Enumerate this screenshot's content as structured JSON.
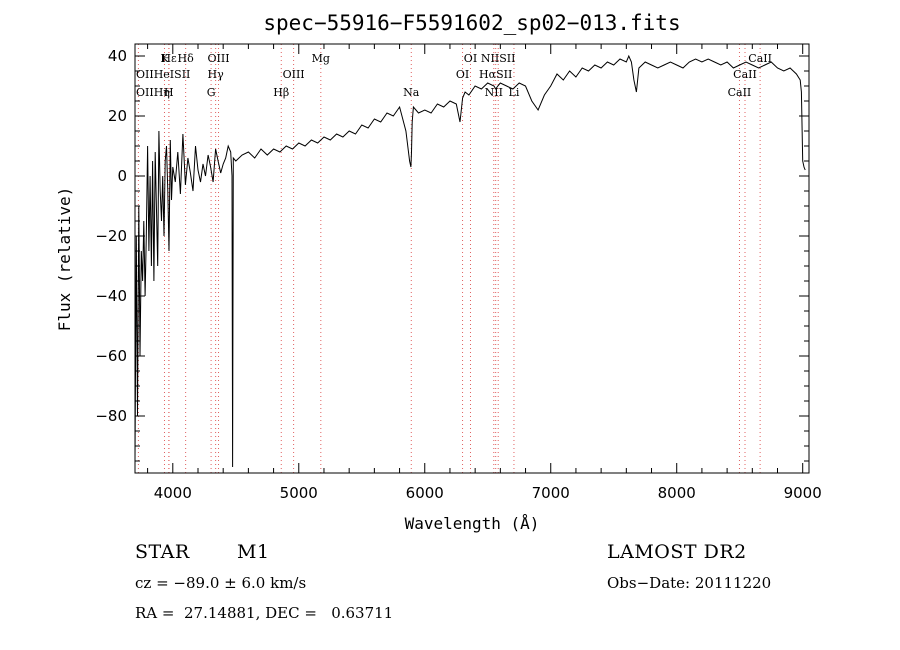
{
  "chart_data": {
    "type": "line",
    "title": "spec−55916−F5591602_sp02−013.fits",
    "xlabel": "Wavelength (Å)",
    "ylabel": "Flux (relative)",
    "xlim": [
      3700,
      9050
    ],
    "ylim": [
      -99,
      44
    ],
    "xticks": [
      4000,
      5000,
      6000,
      7000,
      8000,
      9000
    ],
    "yticks": [
      -80,
      -60,
      -40,
      -20,
      0,
      20,
      40
    ],
    "ytick_labels": [
      "−80",
      "−60",
      "−40",
      "−20",
      "0",
      "20",
      "40"
    ],
    "series": [
      {
        "x": [
          3700,
          3710,
          3720,
          3730,
          3740,
          3750,
          3760,
          3770,
          3780,
          3790,
          3800,
          3810,
          3820,
          3830,
          3840,
          3850,
          3860,
          3870,
          3880,
          3890,
          3900,
          3910,
          3920,
          3930,
          3940,
          3950,
          3960,
          3970,
          3980,
          3990,
          4000,
          4020,
          4040,
          4060,
          4080,
          4100,
          4120,
          4140,
          4160,
          4180,
          4200,
          4220,
          4240,
          4260,
          4280,
          4300,
          4320,
          4340,
          4360,
          4380,
          4400,
          4420,
          4440,
          4460,
          4470,
          4475,
          4480,
          4500,
          4550,
          4600,
          4650,
          4700,
          4750,
          4800,
          4850,
          4900,
          4950,
          5000,
          5050,
          5100,
          5150,
          5200,
          5250,
          5300,
          5350,
          5400,
          5450,
          5500,
          5550,
          5600,
          5650,
          5700,
          5750,
          5800,
          5850,
          5880,
          5890,
          5895,
          5900,
          5910,
          5950,
          6000,
          6050,
          6100,
          6150,
          6200,
          6250,
          6280,
          6300,
          6320,
          6350,
          6400,
          6450,
          6500,
          6550,
          6563,
          6580,
          6600,
          6650,
          6700,
          6750,
          6800,
          6850,
          6900,
          6950,
          7000,
          7050,
          7100,
          7150,
          7200,
          7250,
          7300,
          7350,
          7400,
          7450,
          7500,
          7550,
          7600,
          7620,
          7640,
          7660,
          7680,
          7700,
          7750,
          7800,
          7850,
          7900,
          7950,
          8000,
          8050,
          8100,
          8150,
          8200,
          8250,
          8300,
          8350,
          8400,
          8450,
          8500,
          8550,
          8600,
          8650,
          8700,
          8750,
          8800,
          8850,
          8900,
          8950,
          8980,
          8990,
          9000,
          9010,
          9020
        ],
        "values": [
          -95,
          -20,
          -80,
          -10,
          -60,
          -25,
          -35,
          -15,
          -40,
          -20,
          10,
          -25,
          0,
          -30,
          5,
          -35,
          8,
          -10,
          -30,
          15,
          -5,
          -15,
          0,
          -20,
          5,
          10,
          -5,
          -25,
          12,
          -8,
          3,
          -2,
          8,
          -6,
          14,
          -3,
          6,
          1,
          -5,
          10,
          2,
          -2,
          4,
          0,
          7,
          3,
          -2,
          9,
          5,
          1,
          4,
          6,
          10,
          8,
          0,
          -97,
          6,
          5,
          7,
          8,
          6,
          9,
          7,
          9,
          8,
          10,
          9,
          11,
          10,
          12,
          11,
          13,
          12,
          14,
          13,
          15,
          14,
          17,
          16,
          19,
          18,
          21,
          20,
          23,
          15,
          5,
          3,
          8,
          18,
          23,
          21,
          22,
          21,
          24,
          23,
          25,
          24,
          18,
          26,
          28,
          27,
          30,
          29,
          31,
          30,
          29,
          30,
          31,
          30,
          29,
          31,
          30,
          25,
          22,
          27,
          30,
          34,
          32,
          35,
          33,
          36,
          35,
          37,
          36,
          38,
          37,
          39,
          38,
          40,
          38,
          32,
          28,
          36,
          38,
          37,
          36,
          37,
          38,
          37,
          36,
          38,
          39,
          38,
          39,
          38,
          37,
          38,
          36,
          37,
          38,
          37,
          36,
          37,
          38,
          36,
          35,
          36,
          34,
          32,
          28,
          5,
          3,
          2
        ]
      }
    ],
    "line_labels": [
      {
        "text": "Hε",
        "x": 3970,
        "row": 1
      },
      {
        "text": "K",
        "x": 3934,
        "row": 1
      },
      {
        "text": "Hδ",
        "x": 4102,
        "row": 1
      },
      {
        "text": "OIII",
        "x": 4363,
        "row": 1
      },
      {
        "text": "Mg",
        "x": 5175,
        "row": 1
      },
      {
        "text": "OI",
        "x": 6363,
        "row": 1
      },
      {
        "text": "NIISII",
        "x": 6583,
        "row": 1
      },
      {
        "text": "CaII",
        "x": 8662,
        "row": 1
      },
      {
        "text": "OIIHeISII",
        "x": 3727,
        "row": 2
      },
      {
        "text": "Hγ",
        "x": 4340,
        "row": 2
      },
      {
        "text": "OIII",
        "x": 4959,
        "row": 2
      },
      {
        "text": "OI",
        "x": 6300,
        "row": 2
      },
      {
        "text": "HαSII",
        "x": 6563,
        "row": 2
      },
      {
        "text": "CaII",
        "x": 8542,
        "row": 2
      },
      {
        "text": "OIIHη",
        "x": 3727,
        "row": 3
      },
      {
        "text": "H",
        "x": 3968,
        "row": 3
      },
      {
        "text": "G",
        "x": 4304,
        "row": 3
      },
      {
        "text": "Hβ",
        "x": 4861,
        "row": 3
      },
      {
        "text": "Na",
        "x": 5893,
        "row": 3
      },
      {
        "text": "NII",
        "x": 6548,
        "row": 3
      },
      {
        "text": "Li",
        "x": 6708,
        "row": 3
      },
      {
        "text": "CaII",
        "x": 8498,
        "row": 3
      }
    ],
    "grid": false,
    "legend": "none"
  },
  "info": {
    "class_label": "STAR",
    "subclass_label": "M1",
    "survey_label": "LAMOST DR2",
    "cz_text": "cz = −89.0 ± 6.0 km/s",
    "obsdate_text": "Obs−Date: 20111220",
    "radec_text": "RA =  27.14881, DEC =   0.63711"
  },
  "colors": {
    "line_marker": "#e06060",
    "spectrum": "#000000"
  }
}
